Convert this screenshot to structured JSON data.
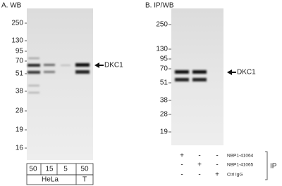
{
  "panel_a": {
    "title": "A. WB",
    "mw_markers": [
      "250",
      "130",
      "95",
      "70",
      "51",
      "38",
      "28",
      "19",
      "16"
    ],
    "target": "DKC1",
    "lanes": [
      "50",
      "15",
      "5",
      "50"
    ],
    "lane_groups": [
      "HeLa",
      "T"
    ]
  },
  "panel_b": {
    "title": "B. IP/WB",
    "mw_markers": [
      "250",
      "130",
      "95",
      "70",
      "51",
      "38",
      "28",
      "19"
    ],
    "target": "DKC1",
    "ip_table": {
      "rows": [
        {
          "symbols": [
            "+",
            "-",
            "-"
          ],
          "label": "NBP1-41064"
        },
        {
          "symbols": [
            "-",
            "+",
            "-"
          ],
          "label": "NBP1-41065"
        },
        {
          "symbols": [
            "-",
            "-",
            "+"
          ],
          "label": "Ctrl IgG"
        }
      ],
      "side_label": "IP"
    }
  }
}
